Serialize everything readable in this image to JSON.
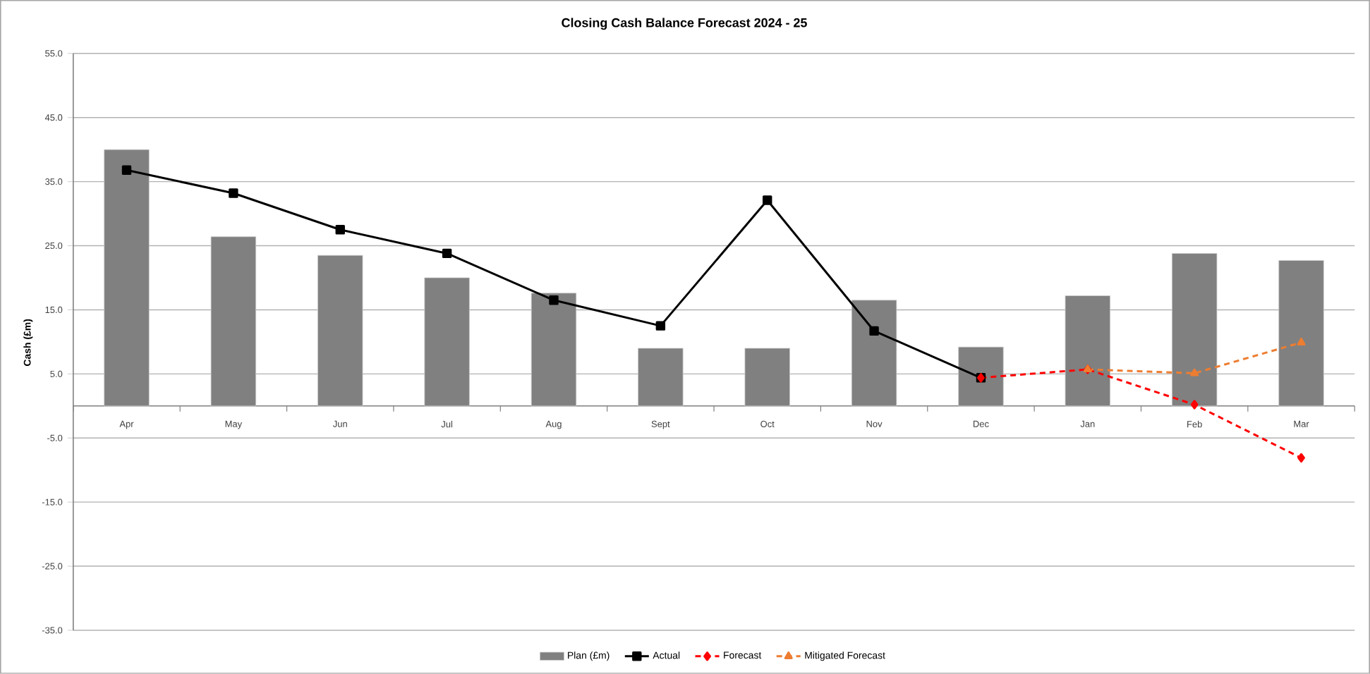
{
  "chart_data": {
    "type": "bar",
    "title": "Closing Cash Balance Forecast 2024 - 25",
    "ylabel": "Cash (£m)",
    "categories": [
      "Apr",
      "May",
      "Jun",
      "Jul",
      "Aug",
      "Sept",
      "Oct",
      "Nov",
      "Dec",
      "Jan",
      "Feb",
      "Mar"
    ],
    "series": [
      {
        "name": "Plan (£m)",
        "color": "#808080",
        "values": [
          40.0,
          26.4,
          23.5,
          20.0,
          17.6,
          9.0,
          9.0,
          16.5,
          9.2,
          17.2,
          23.8,
          22.7
        ]
      },
      {
        "name": "Actual",
        "type": "line",
        "color": "#000000",
        "marker": "square",
        "line_style": "solid",
        "values": [
          36.8,
          33.2,
          27.5,
          23.8,
          16.5,
          12.5,
          32.1,
          11.7,
          4.4,
          null,
          null,
          null
        ]
      },
      {
        "name": "Forecast",
        "type": "line",
        "color": "#ff0000",
        "marker": "diamond",
        "line_style": "dashed",
        "values": [
          null,
          null,
          null,
          null,
          null,
          null,
          null,
          null,
          4.4,
          5.7,
          0.2,
          -8.1
        ]
      },
      {
        "name": "Mitigated Forecast",
        "type": "line",
        "color": "#ed7d31",
        "marker": "triangle",
        "line_style": "dashed",
        "values": [
          null,
          null,
          null,
          null,
          null,
          null,
          null,
          null,
          null,
          5.7,
          5.1,
          9.9
        ]
      }
    ],
    "ylim": [
      -35,
      55
    ],
    "yticks": [
      {
        "value": -35,
        "label": "-35.0"
      },
      {
        "value": -25,
        "label": "-25.0"
      },
      {
        "value": -15,
        "label": "-15.0"
      },
      {
        "value": -5,
        "label": "-5.0"
      },
      {
        "value": 5,
        "label": "5.0"
      },
      {
        "value": 15,
        "label": "15.0"
      },
      {
        "value": 25,
        "label": "25.0"
      },
      {
        "value": 35,
        "label": "35.0"
      },
      {
        "value": 45,
        "label": "45.0"
      },
      {
        "value": 55,
        "label": "55.0"
      }
    ],
    "grid": "y",
    "legend": "bottom"
  }
}
